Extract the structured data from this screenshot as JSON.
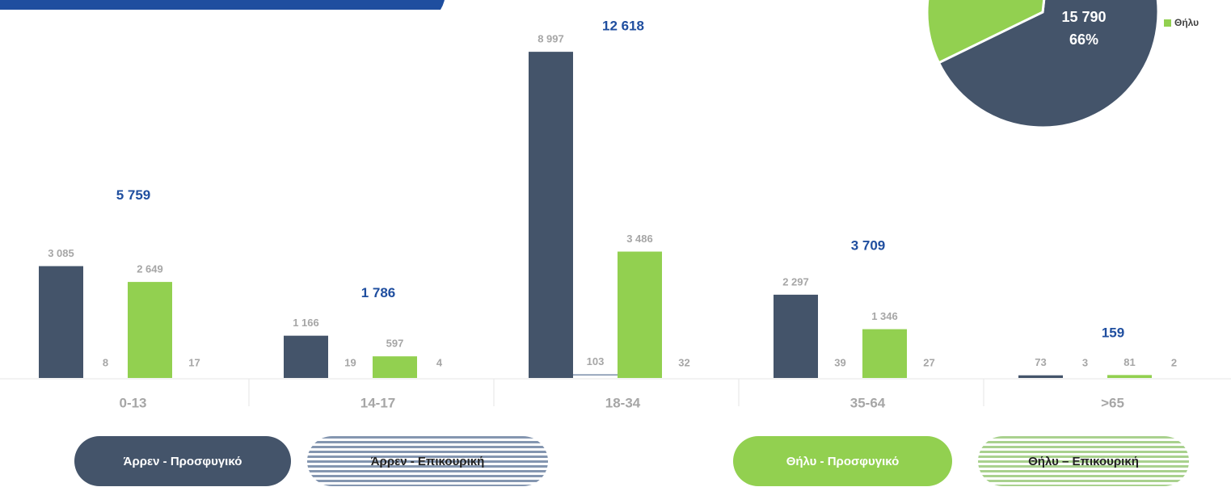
{
  "chart_data": [
    {
      "type": "bar",
      "categories": [
        "0-13",
        "14-17",
        "18-34",
        "35-64",
        ">65"
      ],
      "series": [
        {
          "name": "Άρρεν - Προσφυγικό",
          "color": "#44546a",
          "values": [
            3085,
            1166,
            8997,
            2297,
            73
          ],
          "value_labels": [
            "3 085",
            "1 166",
            "8 997",
            "2 297",
            "73"
          ]
        },
        {
          "name": "Άρρεν - Επικουρική",
          "color": "#8496b0",
          "values": [
            8,
            19,
            103,
            39,
            3
          ],
          "value_labels": [
            "8",
            "19",
            "103",
            "39",
            "3"
          ]
        },
        {
          "name": "Θήλυ - Προσφυγικό",
          "color": "#92d050",
          "values": [
            2649,
            597,
            3486,
            1346,
            81
          ],
          "value_labels": [
            "2 649",
            "597",
            "3 486",
            "1 346",
            "81"
          ]
        },
        {
          "name": "Θήλυ – Επικουρική",
          "color": "#c5e0b4",
          "values": [
            17,
            4,
            32,
            27,
            2
          ],
          "value_labels": [
            "17",
            "4",
            "32",
            "27",
            "2"
          ]
        }
      ],
      "totals": [
        5759,
        1786,
        12618,
        3709,
        159
      ],
      "total_labels": [
        "5 759",
        "1 786",
        "12 618",
        "3 709",
        "159"
      ],
      "ylim": [
        0,
        9000
      ]
    },
    {
      "type": "pie",
      "slices": [
        {
          "color": "#44546a",
          "value": 66,
          "value_label": "66%",
          "count": 15790,
          "count_label": "15 790"
        },
        {
          "name": "Θήλυ",
          "color": "#92d050",
          "value": 34
        }
      ]
    }
  ]
}
